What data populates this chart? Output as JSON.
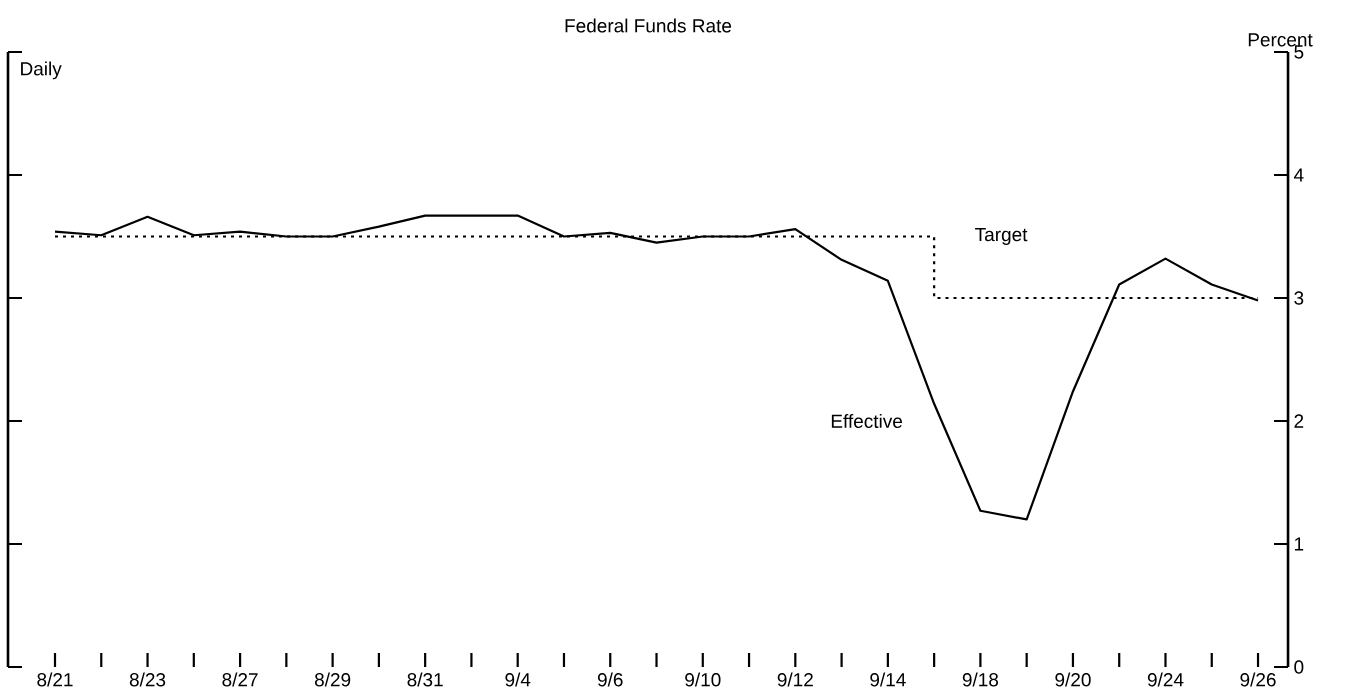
{
  "chart_data": {
    "type": "line",
    "title": "Federal Funds Rate",
    "ylabel": "Percent",
    "annotations": [
      "Daily"
    ],
    "categories": [
      "8/21",
      null,
      "8/23",
      null,
      "8/27",
      null,
      "8/29",
      null,
      "8/31",
      null,
      "9/4",
      null,
      "9/6",
      null,
      "9/10",
      null,
      "9/12",
      null,
      "9/14",
      null,
      "9/18",
      null,
      "9/20",
      null,
      "9/24",
      null,
      "9/26"
    ],
    "ylim": [
      0,
      5
    ],
    "yticks": [
      0,
      1,
      2,
      3,
      4,
      5
    ],
    "grid": false,
    "series": [
      {
        "name": "Effective",
        "line_style": "solid",
        "color": "#000000",
        "values": [
          3.54,
          3.51,
          3.66,
          3.51,
          3.54,
          3.5,
          3.5,
          3.58,
          3.67,
          3.67,
          3.67,
          3.5,
          3.53,
          3.45,
          3.5,
          3.5,
          3.56,
          3.31,
          3.14,
          2.14,
          1.27,
          1.2,
          2.24,
          3.11,
          3.32,
          3.11,
          2.98
        ]
      },
      {
        "name": "Target",
        "type": "step",
        "line_style": "dotted",
        "color": "#000000",
        "values": [
          3.5,
          3.5,
          3.5,
          3.5,
          3.5,
          3.5,
          3.5,
          3.5,
          3.5,
          3.5,
          3.5,
          3.5,
          3.5,
          3.5,
          3.5,
          3.5,
          3.5,
          3.5,
          3.5,
          3.0,
          3.0,
          3.0,
          3.0,
          3.0,
          3.0,
          3.0,
          3.0
        ]
      }
    ]
  }
}
